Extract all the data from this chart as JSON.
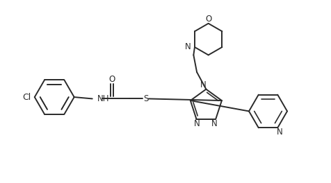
{
  "bg_color": "#ffffff",
  "line_color": "#2a2a2a",
  "lw": 1.4,
  "fs": 8.5,
  "fig_w": 4.77,
  "fig_h": 2.64,
  "dpi": 100,
  "xlim": [
    0,
    10
  ],
  "ylim": [
    0,
    5.5
  ]
}
